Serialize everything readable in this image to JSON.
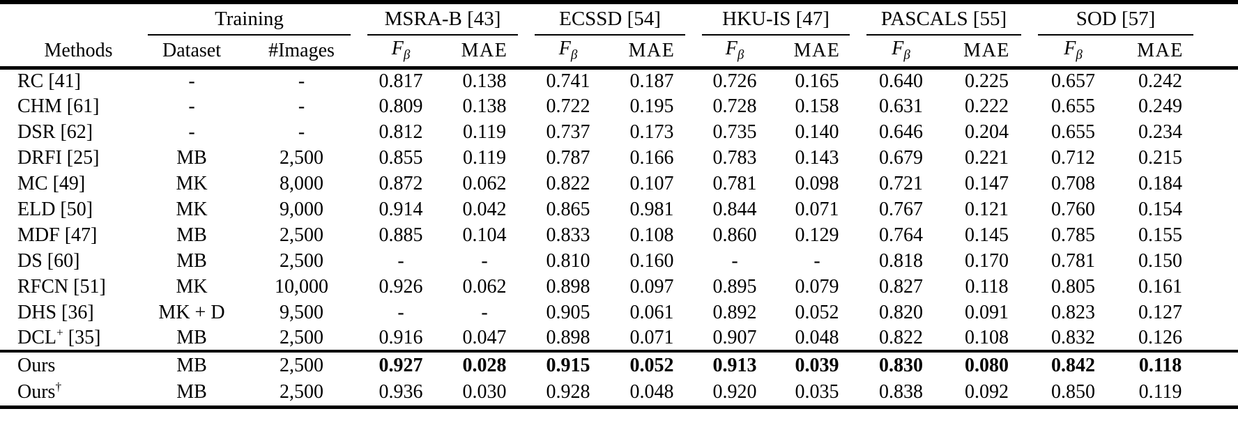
{
  "page": {
    "background": "#ffffff",
    "text_color": "#000000"
  },
  "table": {
    "header": {
      "methods": "Methods",
      "training_group": "Training",
      "dataset": "Dataset",
      "images": "#Images",
      "groups": [
        "MSRA-B [43]",
        "ECSSD [54]",
        "HKU-IS [47]",
        "PASCALS [55]",
        "SOD [57]"
      ],
      "metric_f": "F",
      "metric_f_sub": "β",
      "metric_mae": "MAE"
    },
    "rows": [
      {
        "method": {
          "pre": "RC [41]",
          "sup": "",
          "post": ""
        },
        "dataset": "-",
        "images": "-",
        "bold": false,
        "values": [
          "0.817",
          "0.138",
          "0.741",
          "0.187",
          "0.726",
          "0.165",
          "0.640",
          "0.225",
          "0.657",
          "0.242"
        ]
      },
      {
        "method": {
          "pre": "CHM [61]",
          "sup": "",
          "post": ""
        },
        "dataset": "-",
        "images": "-",
        "bold": false,
        "values": [
          "0.809",
          "0.138",
          "0.722",
          "0.195",
          "0.728",
          "0.158",
          "0.631",
          "0.222",
          "0.655",
          "0.249"
        ]
      },
      {
        "method": {
          "pre": "DSR [62]",
          "sup": "",
          "post": ""
        },
        "dataset": "-",
        "images": "-",
        "bold": false,
        "values": [
          "0.812",
          "0.119",
          "0.737",
          "0.173",
          "0.735",
          "0.140",
          "0.646",
          "0.204",
          "0.655",
          "0.234"
        ]
      },
      {
        "method": {
          "pre": "DRFI [25]",
          "sup": "",
          "post": ""
        },
        "dataset": "MB",
        "images": "2,500",
        "bold": false,
        "values": [
          "0.855",
          "0.119",
          "0.787",
          "0.166",
          "0.783",
          "0.143",
          "0.679",
          "0.221",
          "0.712",
          "0.215"
        ]
      },
      {
        "method": {
          "pre": "MC [49]",
          "sup": "",
          "post": ""
        },
        "dataset": "MK",
        "images": "8,000",
        "bold": false,
        "values": [
          "0.872",
          "0.062",
          "0.822",
          "0.107",
          "0.781",
          "0.098",
          "0.721",
          "0.147",
          "0.708",
          "0.184"
        ]
      },
      {
        "method": {
          "pre": "ELD [50]",
          "sup": "",
          "post": ""
        },
        "dataset": "MK",
        "images": "9,000",
        "bold": false,
        "values": [
          "0.914",
          "0.042",
          "0.865",
          "0.981",
          "0.844",
          "0.071",
          "0.767",
          "0.121",
          "0.760",
          "0.154"
        ]
      },
      {
        "method": {
          "pre": "MDF [47]",
          "sup": "",
          "post": ""
        },
        "dataset": "MB",
        "images": "2,500",
        "bold": false,
        "values": [
          "0.885",
          "0.104",
          "0.833",
          "0.108",
          "0.860",
          "0.129",
          "0.764",
          "0.145",
          "0.785",
          "0.155"
        ]
      },
      {
        "method": {
          "pre": "DS [60]",
          "sup": "",
          "post": ""
        },
        "dataset": "MB",
        "images": "2,500",
        "bold": false,
        "values": [
          "-",
          "-",
          "0.810",
          "0.160",
          "-",
          "-",
          "0.818",
          "0.170",
          "0.781",
          "0.150"
        ]
      },
      {
        "method": {
          "pre": "RFCN [51]",
          "sup": "",
          "post": ""
        },
        "dataset": "MK",
        "images": "10,000",
        "bold": false,
        "values": [
          "0.926",
          "0.062",
          "0.898",
          "0.097",
          "0.895",
          "0.079",
          "0.827",
          "0.118",
          "0.805",
          "0.161"
        ]
      },
      {
        "method": {
          "pre": "DHS [36]",
          "sup": "",
          "post": ""
        },
        "dataset": "MK + D",
        "images": "9,500",
        "bold": false,
        "values": [
          "-",
          "-",
          "0.905",
          "0.061",
          "0.892",
          "0.052",
          "0.820",
          "0.091",
          "0.823",
          "0.127"
        ]
      },
      {
        "method": {
          "pre": "DCL",
          "sup": "+",
          "post": " [35]"
        },
        "dataset": "MB",
        "images": "2,500",
        "bold": false,
        "values": [
          "0.916",
          "0.047",
          "0.898",
          "0.071",
          "0.907",
          "0.048",
          "0.822",
          "0.108",
          "0.832",
          "0.126"
        ]
      }
    ],
    "ours_rows": [
      {
        "method": {
          "pre": "Ours",
          "sup": "",
          "post": ""
        },
        "dataset": "MB",
        "images": "2,500",
        "bold": true,
        "values": [
          "0.927",
          "0.028",
          "0.915",
          "0.052",
          "0.913",
          "0.039",
          "0.830",
          "0.080",
          "0.842",
          "0.118"
        ]
      },
      {
        "method": {
          "pre": "Ours",
          "sup": "†",
          "post": ""
        },
        "dataset": "MB",
        "images": "2,500",
        "bold": false,
        "values": [
          "0.936",
          "0.030",
          "0.928",
          "0.048",
          "0.920",
          "0.035",
          "0.838",
          "0.092",
          "0.850",
          "0.119"
        ]
      }
    ]
  }
}
